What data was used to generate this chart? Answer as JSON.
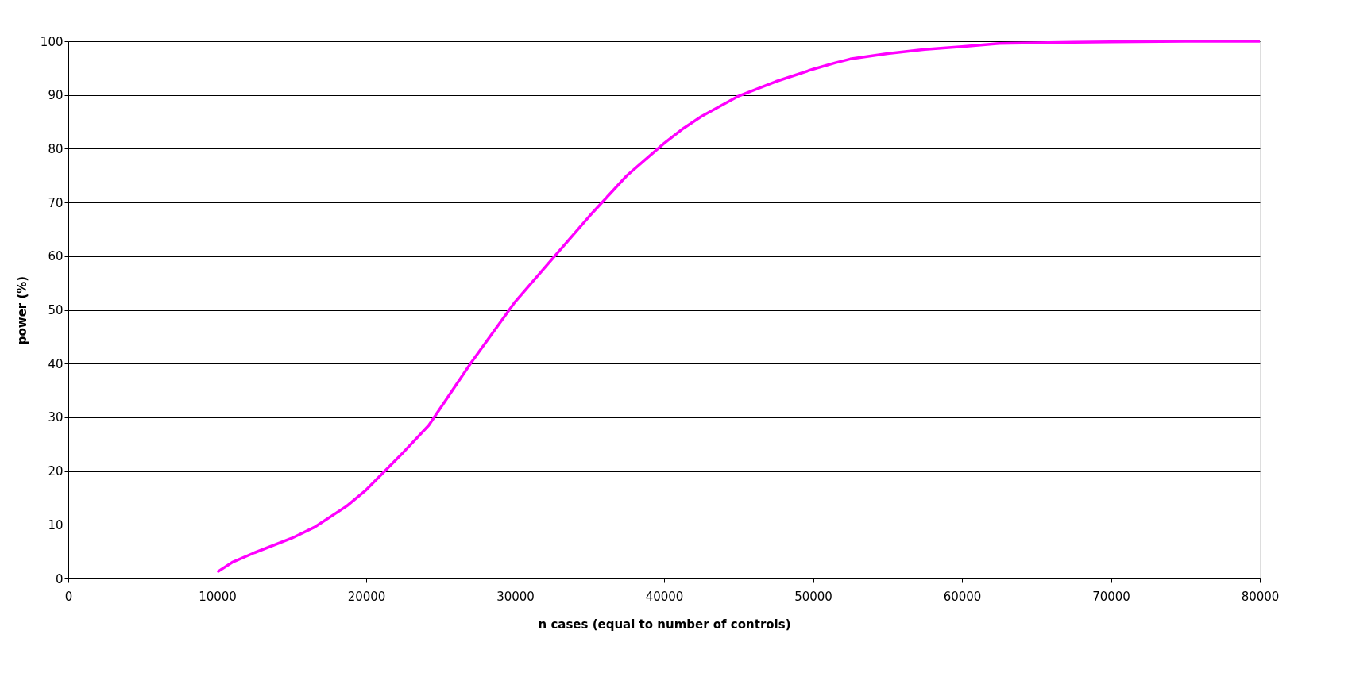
{
  "chart_data": {
    "type": "line",
    "xlabel": "n cases (equal to number of controls)",
    "ylabel": "power (%)",
    "x": [
      10000,
      11000,
      12500,
      15000,
      16500,
      18700,
      20000,
      22500,
      24200,
      27000,
      30000,
      32500,
      35000,
      37500,
      40000,
      41300,
      42500,
      45000,
      47500,
      50000,
      51500,
      52500,
      55000,
      57500,
      60000,
      62500,
      65000,
      67500,
      70000,
      75000,
      80000
    ],
    "series": [
      {
        "color": "#ff00ff",
        "values": [
          1.2,
          3.0,
          4.8,
          7.5,
          9.5,
          13.5,
          16.5,
          23.5,
          28.5,
          40,
          51.5,
          59.5,
          67.5,
          75,
          81,
          83.8,
          86,
          89.8,
          92.5,
          94.8,
          96,
          96.7,
          97.7,
          98.5,
          99,
          99.6,
          99.7,
          99.8,
          99.9,
          100,
          100
        ]
      }
    ],
    "xlim": [
      0,
      80000
    ],
    "xticks": [
      0,
      10000,
      20000,
      30000,
      40000,
      50000,
      60000,
      70000,
      80000
    ],
    "ylim": [
      0,
      100
    ],
    "yticks": [
      0,
      10,
      20,
      30,
      40,
      50,
      60,
      70,
      80,
      90,
      100
    ],
    "grid": "y",
    "marker": "none",
    "line_style": "solid"
  }
}
